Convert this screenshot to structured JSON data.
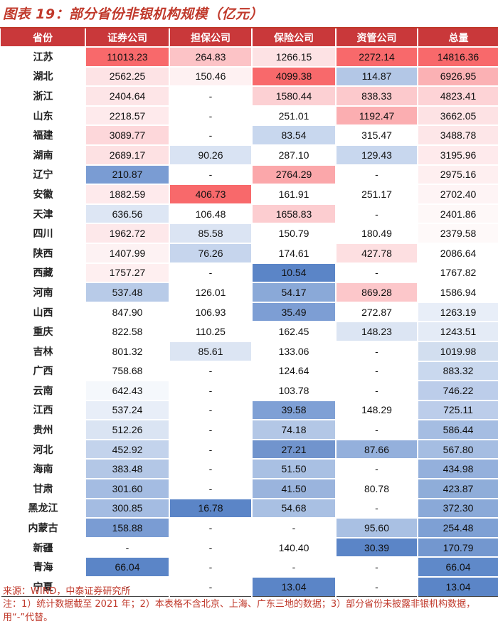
{
  "title": "图表 19：部分省份非银机构规模（亿元）",
  "headers": [
    "省份",
    "证券公司",
    "担保公司",
    "保险公司",
    "资管公司",
    "总量"
  ],
  "rows": [
    [
      "江苏",
      "11013.23",
      "264.83",
      "1266.15",
      "2272.14",
      "14816.36"
    ],
    [
      "湖北",
      "2562.25",
      "150.46",
      "4099.38",
      "114.87",
      "6926.95"
    ],
    [
      "浙江",
      "2404.64",
      "-",
      "1580.44",
      "838.33",
      "4823.41"
    ],
    [
      "山东",
      "2218.57",
      "-",
      "251.01",
      "1192.47",
      "3662.05"
    ],
    [
      "福建",
      "3089.77",
      "-",
      "83.54",
      "315.47",
      "3488.78"
    ],
    [
      "湖南",
      "2689.17",
      "90.26",
      "287.10",
      "129.43",
      "3195.96"
    ],
    [
      "辽宁",
      "210.87",
      "-",
      "2764.29",
      "-",
      "2975.16"
    ],
    [
      "安徽",
      "1882.59",
      "406.73",
      "161.91",
      "251.17",
      "2702.40"
    ],
    [
      "天津",
      "636.56",
      "106.48",
      "1658.83",
      "-",
      "2401.86"
    ],
    [
      "四川",
      "1962.72",
      "85.58",
      "150.79",
      "180.49",
      "2379.58"
    ],
    [
      "陕西",
      "1407.99",
      "76.26",
      "174.61",
      "427.78",
      "2086.64"
    ],
    [
      "西藏",
      "1757.27",
      "-",
      "10.54",
      "-",
      "1767.82"
    ],
    [
      "河南",
      "537.48",
      "126.01",
      "54.17",
      "869.28",
      "1586.94"
    ],
    [
      "山西",
      "847.90",
      "106.93",
      "35.49",
      "272.87",
      "1263.19"
    ],
    [
      "重庆",
      "822.58",
      "110.25",
      "162.45",
      "148.23",
      "1243.51"
    ],
    [
      "吉林",
      "801.32",
      "85.61",
      "133.06",
      "-",
      "1019.98"
    ],
    [
      "广西",
      "758.68",
      "-",
      "124.64",
      "-",
      "883.32"
    ],
    [
      "云南",
      "642.43",
      "-",
      "103.78",
      "-",
      "746.22"
    ],
    [
      "江西",
      "537.24",
      "-",
      "39.58",
      "148.29",
      "725.11"
    ],
    [
      "贵州",
      "512.26",
      "-",
      "74.18",
      "-",
      "586.44"
    ],
    [
      "河北",
      "452.92",
      "-",
      "27.21",
      "87.66",
      "567.80"
    ],
    [
      "海南",
      "383.48",
      "-",
      "51.50",
      "-",
      "434.98"
    ],
    [
      "甘肃",
      "301.60",
      "-",
      "41.50",
      "80.78",
      "423.87"
    ],
    [
      "黑龙江",
      "300.85",
      "16.78",
      "54.68",
      "-",
      "372.30"
    ],
    [
      "内蒙古",
      "158.88",
      "-",
      "-",
      "95.60",
      "254.48"
    ],
    [
      "新疆",
      "-",
      "-",
      "140.40",
      "30.39",
      "170.79"
    ],
    [
      "青海",
      "66.04",
      "-",
      "-",
      "-",
      "66.04"
    ],
    [
      "宁夏",
      "-",
      "-",
      "13.04",
      "-",
      "13.04"
    ]
  ],
  "cell_colors": [
    [
      "#f8696b",
      "#fcc3c6",
      "#fde2e4",
      "#f8696b",
      "#f8696b"
    ],
    [
      "#fde3e5",
      "#fef1f2",
      "#f8696b",
      "#b3c7e6",
      "#fbb1b4"
    ],
    [
      "#fde5e7",
      "#ffffff",
      "#fcd0d3",
      "#fcc9cc",
      "#fdd3d6"
    ],
    [
      "#feeaec",
      "#ffffff",
      "#ffffff",
      "#fbaeb1",
      "#fde2e4"
    ],
    [
      "#fdd7da",
      "#ffffff",
      "#c8d7ee",
      "#ffffff",
      "#fde6e8"
    ],
    [
      "#fde1e3",
      "#d9e3f3",
      "#ffffff",
      "#c8d7ee",
      "#feeaec"
    ],
    [
      "#7a9cd3",
      "#ffffff",
      "#fba7aa",
      "#ffffff",
      "#feeff0"
    ],
    [
      "#feeaec",
      "#f8696b",
      "#ffffff",
      "#ffffff",
      "#fef4f5"
    ],
    [
      "#dde6f4",
      "#ffffff",
      "#fccdd0",
      "#ffffff",
      "#fef8f8"
    ],
    [
      "#fde8ea",
      "#dbe4f3",
      "#ffffff",
      "#ffffff",
      "#fef9f9"
    ],
    [
      "#fdf2f3",
      "#c6d5ed",
      "#ffffff",
      "#fddfe1",
      "#ffffff"
    ],
    [
      "#feeff0",
      "#ffffff",
      "#5b85c7",
      "#ffffff",
      "#ffffff"
    ],
    [
      "#b8cbe8",
      "#ffffff",
      "#8aa9d8",
      "#fcc7ca",
      "#ffffff"
    ],
    [
      "#ffffff",
      "#ffffff",
      "#7d9ed4",
      "#ffffff",
      "#e8eef8"
    ],
    [
      "#ffffff",
      "#ffffff",
      "#ffffff",
      "#dce5f3",
      "#e4ebf6"
    ],
    [
      "#ffffff",
      "#dce5f3",
      "#ffffff",
      "#ffffff",
      "#d2deef"
    ],
    [
      "#ffffff",
      "#ffffff",
      "#ffffff",
      "#ffffff",
      "#c9d8ee"
    ],
    [
      "#f5f8fc",
      "#ffffff",
      "#ffffff",
      "#ffffff",
      "#bccdea"
    ],
    [
      "#e8eef8",
      "#ffffff",
      "#7fa0d5",
      "#ffffff",
      "#bccdea"
    ],
    [
      "#dae4f3",
      "#ffffff",
      "#b3c7e6",
      "#ffffff",
      "#a5bde2"
    ],
    [
      "#c3d3ec",
      "#ffffff",
      "#7194cd",
      "#94b0dc",
      "#a5bde2"
    ],
    [
      "#b3c7e6",
      "#ffffff",
      "#a9c0e3",
      "#ffffff",
      "#94b0dc"
    ],
    [
      "#a4bce2",
      "#ffffff",
      "#9ab4dd",
      "#ffffff",
      "#8fadd9"
    ],
    [
      "#a4bce2",
      "#5b85c7",
      "#a9c0e3",
      "#ffffff",
      "#8aa9d8"
    ],
    [
      "#7a9cd3",
      "#ffffff",
      "#ffffff",
      "#a9c0e3",
      "#7ea0d4"
    ],
    [
      "#ffffff",
      "#ffffff",
      "#ffffff",
      "#5b85c7",
      "#7397cf"
    ],
    [
      "#5b85c7",
      "#ffffff",
      "#ffffff",
      "#ffffff",
      "#5f89c9"
    ],
    [
      "#ffffff",
      "#ffffff",
      "#5b85c7",
      "#ffffff",
      "#5b85c7"
    ]
  ],
  "source": "来源：WIND，中泰证券研究所",
  "note": "注：1）统计数据截至 2021 年；2）本表格不含北京、上海、广东三地的数据；3）部分省份未披露非银机构数据，用“-”代替。"
}
